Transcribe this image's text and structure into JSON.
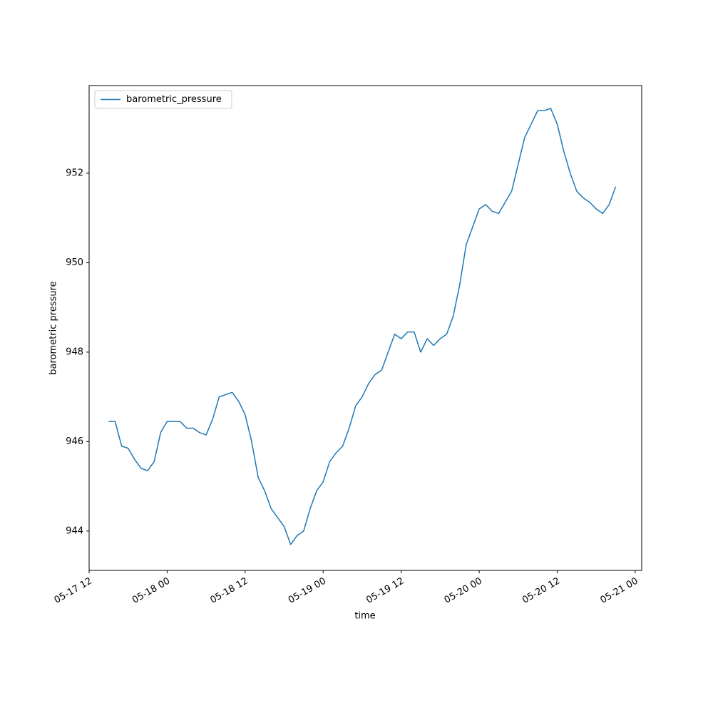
{
  "chart_data": {
    "type": "line",
    "xlabel": "time",
    "ylabel": "barometric pressure",
    "x": [
      "05-17 15",
      "05-17 16",
      "05-17 17",
      "05-17 18",
      "05-17 19",
      "05-17 20",
      "05-17 21",
      "05-17 22",
      "05-17 23",
      "05-18 00",
      "05-18 01",
      "05-18 02",
      "05-18 03",
      "05-18 04",
      "05-18 05",
      "05-18 06",
      "05-18 07",
      "05-18 08",
      "05-18 09",
      "05-18 10",
      "05-18 11",
      "05-18 12",
      "05-18 13",
      "05-18 14",
      "05-18 15",
      "05-18 16",
      "05-18 17",
      "05-18 18",
      "05-18 19",
      "05-18 20",
      "05-18 21",
      "05-18 22",
      "05-18 23",
      "05-19 00",
      "05-19 01",
      "05-19 02",
      "05-19 03",
      "05-19 04",
      "05-19 05",
      "05-19 06",
      "05-19 07",
      "05-19 08",
      "05-19 09",
      "05-19 10",
      "05-19 11",
      "05-19 12",
      "05-19 13",
      "05-19 14",
      "05-19 15",
      "05-19 16",
      "05-19 17",
      "05-19 18",
      "05-19 19",
      "05-19 20",
      "05-19 21",
      "05-19 22",
      "05-19 23",
      "05-20 00",
      "05-20 01",
      "05-20 02",
      "05-20 03",
      "05-20 04",
      "05-20 05",
      "05-20 06",
      "05-20 07",
      "05-20 08",
      "05-20 09",
      "05-20 10",
      "05-20 11",
      "05-20 12",
      "05-20 13",
      "05-20 14",
      "05-20 15",
      "05-20 16",
      "05-20 17",
      "05-20 18",
      "05-20 19",
      "05-20 20",
      "05-20 21"
    ],
    "series": [
      {
        "name": "barometric_pressure",
        "color": "#1f77b4",
        "values": [
          946.45,
          946.45,
          945.9,
          945.85,
          945.6,
          945.4,
          945.35,
          945.55,
          946.2,
          946.45,
          946.45,
          946.45,
          946.3,
          946.3,
          946.2,
          946.15,
          946.5,
          947.0,
          947.05,
          947.1,
          946.9,
          946.6,
          946.0,
          945.2,
          944.9,
          944.5,
          944.3,
          944.1,
          943.7,
          943.9,
          944.0,
          944.5,
          944.9,
          945.1,
          945.55,
          945.75,
          945.9,
          946.3,
          946.8,
          947.0,
          947.3,
          947.5,
          947.6,
          948.0,
          948.4,
          948.3,
          948.45,
          948.45,
          948.0,
          948.3,
          948.15,
          948.3,
          948.4,
          948.8,
          949.5,
          950.4,
          950.8,
          951.2,
          951.3,
          951.15,
          951.1,
          951.35,
          951.6,
          952.2,
          952.8,
          953.1,
          953.4,
          953.4,
          953.45,
          953.1,
          952.5,
          952.0,
          951.6,
          951.45,
          951.35,
          951.2,
          951.1,
          951.3,
          951.7
        ]
      }
    ],
    "xlim": [
      "05-17 12",
      "05-21 01"
    ],
    "xticks": [
      "05-17 12",
      "05-18 00",
      "05-18 12",
      "05-19 00",
      "05-19 12",
      "05-20 00",
      "05-20 12",
      "05-21 00"
    ],
    "ylim": [
      943.12,
      953.96
    ],
    "yticks": [
      944,
      946,
      948,
      950,
      952
    ],
    "legend": "upper left"
  }
}
